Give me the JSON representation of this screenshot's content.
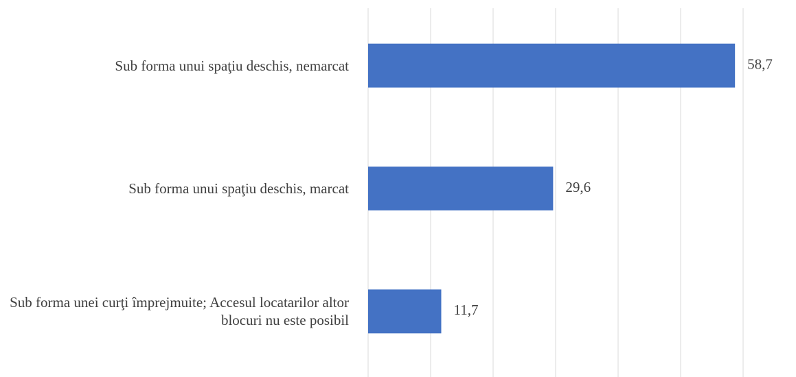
{
  "chart_data": {
    "type": "hbar",
    "categories": [
      "Sub forma unui spaţiu deschis, nemarcat",
      "Sub forma unui spaţiu deschis, marcat",
      "Sub forma unei curţi împrejmuite; Accesul locatarilor altor blocuri nu este posibil"
    ],
    "values": [
      58.7,
      29.6,
      11.7
    ],
    "value_labels": [
      "58,7",
      "29,6",
      "11,7"
    ],
    "color": "#4472c4",
    "xlim": [
      0,
      60
    ],
    "xticks": [
      0,
      10,
      20,
      30,
      40,
      50,
      60
    ],
    "grid": true
  }
}
